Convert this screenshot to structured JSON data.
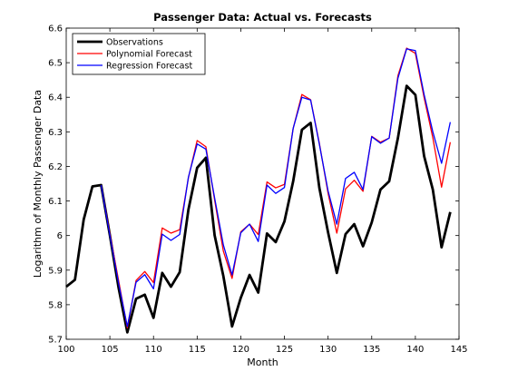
{
  "chart_data": {
    "type": "line",
    "title": "Passenger Data: Actual vs. Forecasts",
    "xlabel": "Month",
    "ylabel": "Logarithm of Monthly Passenger Data",
    "xlim": [
      100,
      145
    ],
    "ylim": [
      5.7,
      6.6
    ],
    "xticks": [
      100,
      105,
      110,
      115,
      120,
      125,
      130,
      135,
      140,
      145
    ],
    "yticks": [
      5.7,
      5.8,
      5.9,
      6.0,
      6.1,
      6.2,
      6.3,
      6.4,
      6.5,
      6.6
    ],
    "xtick_labels": [
      "100",
      "105",
      "110",
      "115",
      "120",
      "125",
      "130",
      "135",
      "140",
      "145"
    ],
    "ytick_labels": [
      "5.7",
      "5.8",
      "5.9",
      "6",
      "6.1",
      "6.2",
      "6.3",
      "6.4",
      "6.5",
      "6.6"
    ],
    "grid": false,
    "legend": "top-left",
    "series": [
      {
        "name": "Observations",
        "color": "#000000",
        "x": [
          100,
          101,
          102,
          103,
          104,
          105,
          106,
          107,
          108,
          109,
          110,
          111,
          112,
          113,
          114,
          115,
          116,
          117,
          118,
          119,
          120,
          121,
          122,
          123,
          124,
          125,
          126,
          127,
          128,
          129,
          130,
          131,
          132,
          133,
          134,
          135,
          136,
          137,
          138,
          139,
          140,
          141,
          142,
          143,
          144
        ],
        "values": [
          5.852,
          5.872,
          6.046,
          6.142,
          6.146,
          6.001,
          5.849,
          5.72,
          5.817,
          5.829,
          5.762,
          5.892,
          5.852,
          5.894,
          6.075,
          6.196,
          6.225,
          6.001,
          5.883,
          5.737,
          5.82,
          5.886,
          5.835,
          6.006,
          5.981,
          6.041,
          6.157,
          6.306,
          6.326,
          6.138,
          6.009,
          5.892,
          6.004,
          6.033,
          5.969,
          6.038,
          6.133,
          6.157,
          6.282,
          6.433,
          6.407,
          6.23,
          6.133,
          5.966,
          6.068
        ]
      },
      {
        "name": "Polynomial Forecast",
        "color": "#ff0000",
        "x": [
          104,
          105,
          106,
          107,
          108,
          109,
          110,
          111,
          112,
          113,
          114,
          115,
          116,
          117,
          118,
          119,
          120,
          121,
          122,
          123,
          124,
          125,
          126,
          127,
          128,
          129,
          130,
          131,
          132,
          133,
          134,
          135,
          136,
          137,
          138,
          139,
          140,
          141,
          142,
          143,
          144
        ],
        "values": [
          6.146,
          6.005,
          5.87,
          5.733,
          5.87,
          5.896,
          5.864,
          6.022,
          6.007,
          6.017,
          6.167,
          6.275,
          6.257,
          6.103,
          5.955,
          5.876,
          6.011,
          6.033,
          6.003,
          6.155,
          6.138,
          6.148,
          6.31,
          6.408,
          6.393,
          6.267,
          6.122,
          6.007,
          6.135,
          6.16,
          6.128,
          6.287,
          6.27,
          6.282,
          6.462,
          6.542,
          6.527,
          6.399,
          6.283,
          6.14,
          6.27
        ]
      },
      {
        "name": "Regression Forecast",
        "color": "#0000ff",
        "x": [
          104,
          105,
          106,
          107,
          108,
          109,
          110,
          111,
          112,
          113,
          114,
          115,
          116,
          117,
          118,
          119,
          120,
          121,
          122,
          123,
          124,
          125,
          126,
          127,
          128,
          129,
          130,
          131,
          132,
          133,
          134,
          135,
          136,
          137,
          138,
          139,
          140,
          141,
          142,
          143,
          144
        ],
        "values": [
          6.146,
          6.001,
          5.862,
          5.737,
          5.865,
          5.887,
          5.846,
          6.004,
          5.986,
          6.003,
          6.169,
          6.265,
          6.25,
          6.109,
          5.973,
          5.886,
          6.008,
          6.033,
          5.983,
          6.146,
          6.122,
          6.139,
          6.31,
          6.4,
          6.392,
          6.264,
          6.129,
          6.033,
          6.165,
          6.183,
          6.133,
          6.286,
          6.267,
          6.282,
          6.455,
          6.54,
          6.535,
          6.408,
          6.3,
          6.209,
          6.328
        ]
      }
    ]
  }
}
